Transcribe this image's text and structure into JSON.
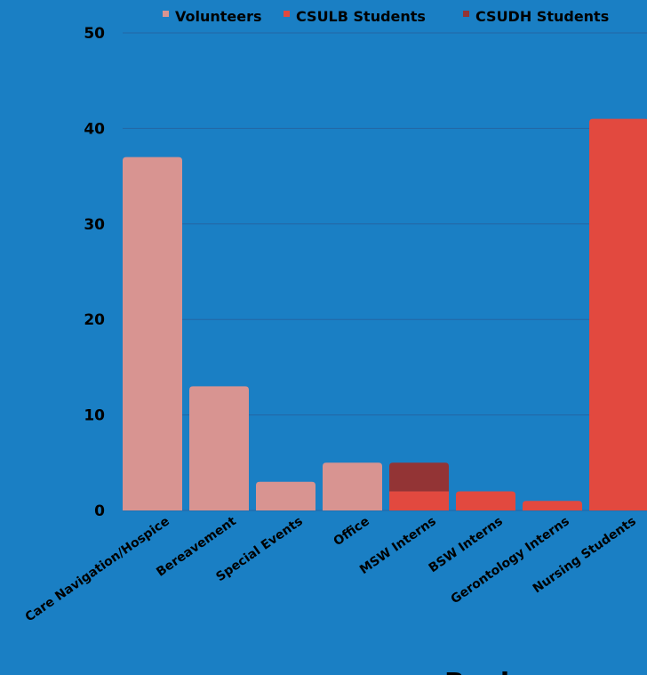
{
  "background": "#1a7fc4",
  "chart_data": {
    "type": "bar",
    "stacked": true,
    "categories": [
      "Care Navigation/Hospice",
      "Bereavement",
      "Special Events",
      "Office",
      "MSW Interns",
      "BSW Interns",
      "Gerontology Interns",
      "Nursing Students"
    ],
    "series": [
      {
        "name": "Volunteers",
        "color": "#d89491",
        "values": [
          37,
          13,
          3,
          5,
          0,
          0,
          0,
          0
        ]
      },
      {
        "name": "CSULB Students",
        "color": "#e2493f",
        "values": [
          0,
          0,
          0,
          0,
          2,
          2,
          1,
          41
        ]
      },
      {
        "name": "CSUDH Students",
        "color": "#933435",
        "values": [
          0,
          0,
          0,
          0,
          3,
          0,
          0,
          0
        ]
      }
    ],
    "ylim": [
      0,
      50
    ],
    "yticks": [
      0,
      10,
      20,
      30,
      40,
      50
    ],
    "grid": true,
    "legend": "top-right",
    "title": "",
    "xlabel": "",
    "ylabel": ""
  },
  "footer_text": "Boxler"
}
